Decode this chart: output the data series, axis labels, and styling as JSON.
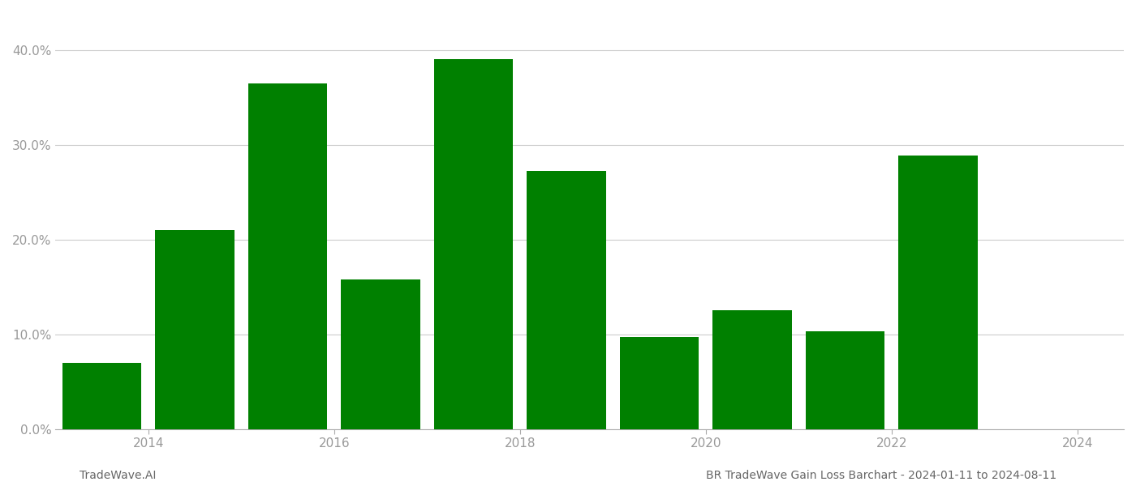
{
  "bar_centers": [
    2013.5,
    2014.5,
    2015.5,
    2016.5,
    2017.5,
    2018.5,
    2019.5,
    2020.5,
    2021.5,
    2022.5
  ],
  "values": [
    0.07,
    0.21,
    0.365,
    0.158,
    0.39,
    0.272,
    0.097,
    0.125,
    0.103,
    0.289
  ],
  "bar_color": "#008000",
  "background_color": "#ffffff",
  "ylabel_ticks": [
    0.0,
    0.1,
    0.2,
    0.3,
    0.4
  ],
  "ylim": [
    0,
    0.44
  ],
  "xlim": [
    2013.0,
    2024.5
  ],
  "xticks": [
    2014,
    2016,
    2018,
    2020,
    2022,
    2024
  ],
  "xtick_labels": [
    "2014",
    "2016",
    "2018",
    "2020",
    "2022",
    "2024"
  ],
  "footer_left": "TradeWave.AI",
  "footer_right": "BR TradeWave Gain Loss Barchart - 2024-01-11 to 2024-08-11",
  "bar_width": 0.85,
  "grid_color": "#cccccc",
  "tick_label_color": "#999999",
  "footer_color": "#666666",
  "tick_fontsize": 11,
  "footer_fontsize": 10
}
